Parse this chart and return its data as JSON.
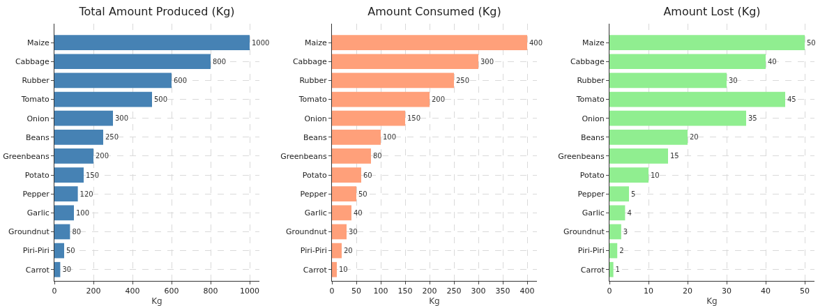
{
  "chart_data": [
    {
      "type": "bar",
      "orientation": "horizontal",
      "title": "Total Amount Produced (Kg)",
      "xlabel": "Kg",
      "categories": [
        "Maize",
        "Cabbage",
        "Rubber",
        "Tomato",
        "Onion",
        "Beans",
        "Greenbeans",
        "Potato",
        "Pepper",
        "Garlic",
        "Groundnut",
        "Piri-Piri",
        "Carrot"
      ],
      "values": [
        1000,
        800,
        600,
        500,
        300,
        250,
        200,
        150,
        120,
        100,
        80,
        50,
        30
      ],
      "color": "#4682b4",
      "xlim": [
        0,
        1050
      ],
      "xticks": [
        0,
        200,
        400,
        600,
        800,
        1000
      ],
      "grid": true,
      "legend": false,
      "data_labels": true
    },
    {
      "type": "bar",
      "orientation": "horizontal",
      "title": "Amount Consumed (Kg)",
      "xlabel": "Kg",
      "categories": [
        "Maize",
        "Cabbage",
        "Rubber",
        "Tomato",
        "Onion",
        "Beans",
        "Greenbeans",
        "Potato",
        "Pepper",
        "Garlic",
        "Groundnut",
        "Piri-Piri",
        "Carrot"
      ],
      "values": [
        400,
        300,
        250,
        200,
        150,
        100,
        80,
        60,
        50,
        40,
        30,
        20,
        10
      ],
      "color": "#ffa07a",
      "xlim": [
        0,
        420
      ],
      "xticks": [
        0,
        50,
        100,
        150,
        200,
        250,
        300,
        350,
        400
      ],
      "grid": true,
      "legend": false,
      "data_labels": true
    },
    {
      "type": "bar",
      "orientation": "horizontal",
      "title": "Amount Lost (Kg)",
      "xlabel": "Kg",
      "categories": [
        "Maize",
        "Cabbage",
        "Rubber",
        "Tomato",
        "Onion",
        "Beans",
        "Greenbeans",
        "Potato",
        "Pepper",
        "Garlic",
        "Groundnut",
        "Piri-Piri",
        "Carrot"
      ],
      "values": [
        50,
        40,
        30,
        45,
        35,
        20,
        15,
        10,
        5,
        4,
        3,
        2,
        1
      ],
      "color": "#90ee90",
      "xlim": [
        0,
        52.5
      ],
      "xticks": [
        0,
        10,
        20,
        30,
        40,
        50
      ],
      "grid": true,
      "legend": false,
      "data_labels": true
    }
  ]
}
